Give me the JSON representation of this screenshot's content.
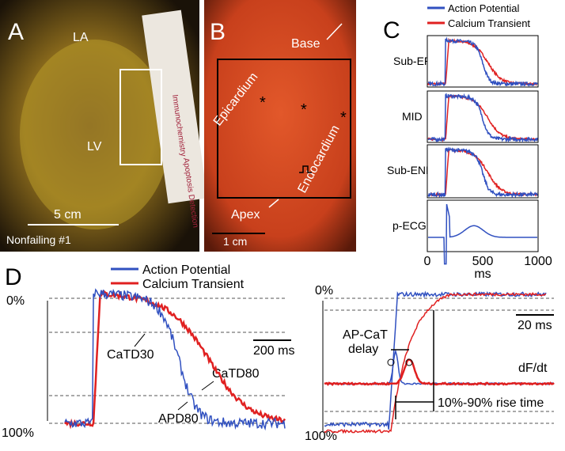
{
  "panels": {
    "a": {
      "label": "A",
      "annotations": [
        "LA",
        "LV"
      ],
      "scale_bar": "5 cm",
      "sample": "Nonfailing #1",
      "ruler_text": [
        "Immunochemistry",
        "Apoptosis Detection"
      ]
    },
    "b": {
      "label": "B",
      "annotations": [
        "Base",
        "Epicardium",
        "Endocardium",
        "Apex"
      ],
      "markers": [
        "*",
        "*",
        "*"
      ],
      "scale_bar": "1 cm"
    },
    "c": {
      "label": "C",
      "legend": [
        "Action Potential",
        "Calcium Transient"
      ],
      "rows": [
        "Sub-EPI",
        "MID",
        "Sub-ENDO",
        "p-ECG"
      ],
      "x_ticks": [
        "0",
        "500",
        "1000"
      ],
      "x_unit": "ms"
    },
    "d": {
      "label": "D",
      "legend": [
        "Action Potential",
        "Calcium Transient"
      ],
      "left": {
        "top": "0%",
        "bottom": "100%",
        "scale_bar": "200 ms",
        "annotations": [
          "CaTD30",
          "CaTD80",
          "APD80"
        ]
      },
      "right": {
        "top": "0%",
        "bottom": "100%",
        "scale_bar": "20 ms",
        "delay": [
          "AP-CaT",
          "delay"
        ],
        "derivative": "dF/dt",
        "rise_time": "10%-90% rise time"
      }
    }
  }
}
